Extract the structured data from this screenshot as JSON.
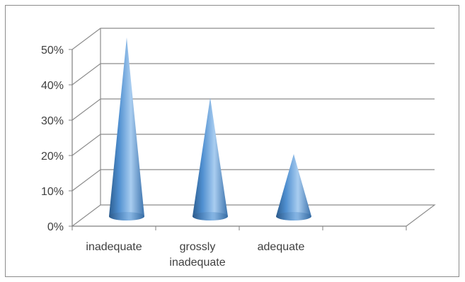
{
  "chart_data": {
    "type": "bar",
    "style": "3d-cone",
    "categories": [
      "inadequate",
      "grossly inadequate",
      "adequate"
    ],
    "category_label_lines": [
      [
        "inadequate"
      ],
      [
        "grossly",
        "inadequate"
      ],
      [
        "adequate"
      ]
    ],
    "slot_count": 4,
    "values": [
      50,
      33,
      17
    ],
    "value_unit": "%",
    "ylim": [
      0,
      50
    ],
    "yticks": [
      0,
      10,
      20,
      30,
      40,
      50
    ],
    "ytick_labels": [
      "0%",
      "10%",
      "20%",
      "30%",
      "40%",
      "50%"
    ],
    "grid": true,
    "legend": "none",
    "colors": {
      "cone_dark": "#2c5d8f",
      "cone_mid": "#4f8fd0",
      "cone_light": "#a9cdf0",
      "axis": "#808080",
      "grid": "#8c8c8c",
      "text": "#404040"
    }
  }
}
